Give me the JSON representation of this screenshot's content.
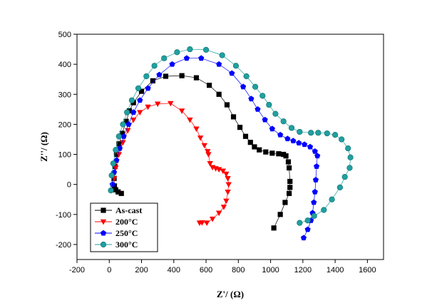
{
  "chart_data": {
    "type": "scatter",
    "title": "",
    "xlabel": "Z'/ (Ω)",
    "ylabel": "Z''/ (Ω)",
    "xlim": [
      -200,
      1700
    ],
    "ylim": [
      -250,
      500
    ],
    "xticks": [
      "-200",
      "0",
      "200",
      "400",
      "600",
      "800",
      "1000",
      "1200",
      "1400",
      "1600"
    ],
    "yticks": [
      "-200",
      "-100",
      "0",
      "100",
      "200",
      "300",
      "400",
      "500"
    ],
    "legend_position": "bottom-left",
    "series": [
      {
        "name": "As-cast",
        "marker": "square",
        "color": "#000000",
        "points": [
          [
            75,
            -30
          ],
          [
            55,
            -25
          ],
          [
            40,
            -18
          ],
          [
            32,
            -5
          ],
          [
            30,
            20
          ],
          [
            35,
            60
          ],
          [
            45,
            100
          ],
          [
            60,
            135
          ],
          [
            80,
            170
          ],
          [
            105,
            210
          ],
          [
            125,
            245
          ],
          [
            150,
            272
          ],
          [
            200,
            310
          ],
          [
            270,
            345
          ],
          [
            350,
            360
          ],
          [
            450,
            362
          ],
          [
            540,
            355
          ],
          [
            620,
            330
          ],
          [
            680,
            300
          ],
          [
            730,
            265
          ],
          [
            770,
            225
          ],
          [
            810,
            190
          ],
          [
            845,
            160
          ],
          [
            875,
            140
          ],
          [
            900,
            125
          ],
          [
            930,
            115
          ],
          [
            970,
            108
          ],
          [
            1010,
            104
          ],
          [
            1050,
            102
          ],
          [
            1080,
            100
          ],
          [
            1095,
            95
          ],
          [
            1110,
            75
          ],
          [
            1115,
            55
          ],
          [
            1120,
            10
          ],
          [
            1120,
            -10
          ],
          [
            1115,
            -30
          ],
          [
            1090,
            -60
          ],
          [
            1060,
            -100
          ],
          [
            1020,
            -145
          ]
        ]
      },
      {
        "name": "200°C",
        "marker": "triangle-down",
        "color": "#ff0000",
        "points": [
          [
            560,
            -128
          ],
          [
            575,
            -127
          ],
          [
            605,
            -128
          ],
          [
            640,
            -115
          ],
          [
            680,
            -95
          ],
          [
            710,
            -75
          ],
          [
            725,
            -55
          ],
          [
            735,
            -25
          ],
          [
            740,
            0
          ],
          [
            735,
            20
          ],
          [
            725,
            35
          ],
          [
            705,
            45
          ],
          [
            680,
            50
          ],
          [
            660,
            53
          ],
          [
            640,
            57
          ],
          [
            625,
            70
          ],
          [
            615,
            100
          ],
          [
            610,
            110
          ],
          [
            590,
            130
          ],
          [
            565,
            155
          ],
          [
            540,
            185
          ],
          [
            500,
            215
          ],
          [
            450,
            245
          ],
          [
            380,
            270
          ],
          [
            300,
            268
          ],
          [
            240,
            258
          ],
          [
            190,
            240
          ],
          [
            150,
            215
          ],
          [
            115,
            180
          ],
          [
            85,
            140
          ],
          [
            60,
            100
          ],
          [
            40,
            55
          ],
          [
            30,
            20
          ]
        ]
      },
      {
        "name": "250°C",
        "marker": "pentagon",
        "color": "#0000ff",
        "points": [
          [
            1205,
            -178
          ],
          [
            1230,
            -150
          ],
          [
            1250,
            -120
          ],
          [
            1260,
            -95
          ],
          [
            1268,
            -60
          ],
          [
            1275,
            -25
          ],
          [
            1280,
            15
          ],
          [
            1285,
            60
          ],
          [
            1290,
            95
          ],
          [
            1275,
            110
          ],
          [
            1245,
            125
          ],
          [
            1210,
            133
          ],
          [
            1175,
            138
          ],
          [
            1140,
            145
          ],
          [
            1105,
            152
          ],
          [
            1060,
            165
          ],
          [
            1010,
            185
          ],
          [
            965,
            215
          ],
          [
            920,
            250
          ],
          [
            880,
            285
          ],
          [
            830,
            325
          ],
          [
            760,
            370
          ],
          [
            680,
            400
          ],
          [
            570,
            420
          ],
          [
            480,
            420
          ],
          [
            390,
            400
          ],
          [
            310,
            365
          ],
          [
            240,
            320
          ],
          [
            190,
            280
          ],
          [
            150,
            240
          ],
          [
            120,
            200
          ],
          [
            90,
            160
          ],
          [
            65,
            120
          ],
          [
            45,
            80
          ],
          [
            30,
            40
          ],
          [
            20,
            0
          ]
        ]
      },
      {
        "name": "300°C",
        "marker": "circle",
        "color": "#20a0a0",
        "points": [
          [
            1180,
            -128
          ],
          [
            1230,
            -120
          ],
          [
            1270,
            -105
          ],
          [
            1330,
            -85
          ],
          [
            1380,
            -50
          ],
          [
            1430,
            -10
          ],
          [
            1460,
            25
          ],
          [
            1490,
            55
          ],
          [
            1495,
            90
          ],
          [
            1480,
            120
          ],
          [
            1440,
            150
          ],
          [
            1400,
            165
          ],
          [
            1350,
            170
          ],
          [
            1295,
            172
          ],
          [
            1250,
            172
          ],
          [
            1180,
            175
          ],
          [
            1130,
            188
          ],
          [
            1080,
            210
          ],
          [
            1030,
            235
          ],
          [
            990,
            265
          ],
          [
            950,
            295
          ],
          [
            905,
            325
          ],
          [
            850,
            360
          ],
          [
            785,
            395
          ],
          [
            700,
            430
          ],
          [
            600,
            448
          ],
          [
            500,
            450
          ],
          [
            420,
            440
          ],
          [
            340,
            420
          ],
          [
            280,
            395
          ],
          [
            230,
            360
          ],
          [
            180,
            320
          ],
          [
            140,
            280
          ],
          [
            110,
            240
          ],
          [
            85,
            200
          ],
          [
            60,
            160
          ],
          [
            40,
            115
          ],
          [
            25,
            70
          ],
          [
            15,
            30
          ],
          [
            10,
            -20
          ]
        ]
      }
    ]
  }
}
